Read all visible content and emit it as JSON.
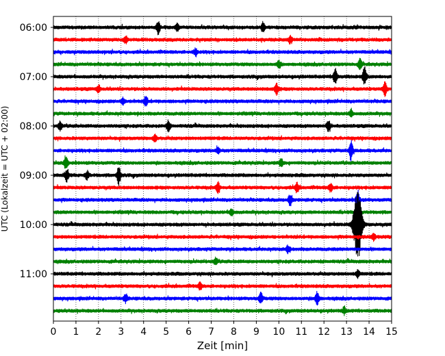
{
  "chart_data": {
    "type": "line",
    "title": "",
    "xlabel": "Zeit  [min]",
    "ylabel": "UTC (Lokalzeit = UTC + 02:00)",
    "xlim": [
      0,
      15
    ],
    "x_ticks": [
      "0",
      "1",
      "2",
      "3",
      "4",
      "5",
      "6",
      "7",
      "8",
      "9",
      "10",
      "11",
      "12",
      "13",
      "14",
      "15"
    ],
    "y_ticks": [
      "06:00",
      "07:00",
      "08:00",
      "09:00",
      "10:00",
      "11:00"
    ],
    "grid": "vertical dotted",
    "colors": [
      "#000000",
      "#ff0000",
      "#0000ff",
      "#008000"
    ],
    "series": [
      {
        "start": "06:00",
        "color": "#000000",
        "events": [
          {
            "t": 4.65,
            "amp": 0.55
          },
          {
            "t": 9.3,
            "amp": 0.4
          },
          {
            "t": 5.5,
            "amp": 0.3
          }
        ]
      },
      {
        "start": "06:15",
        "color": "#ff0000",
        "events": [
          {
            "t": 3.2,
            "amp": 0.3
          },
          {
            "t": 10.5,
            "amp": 0.3
          }
        ]
      },
      {
        "start": "06:30",
        "color": "#0000ff",
        "events": [
          {
            "t": 6.3,
            "amp": 0.3
          }
        ]
      },
      {
        "start": "06:45",
        "color": "#008000",
        "events": [
          {
            "t": 13.6,
            "amp": 0.45
          },
          {
            "t": 10.0,
            "amp": 0.3
          }
        ]
      },
      {
        "start": "07:00",
        "color": "#000000",
        "events": [
          {
            "t": 12.5,
            "amp": 0.7
          },
          {
            "t": 13.8,
            "amp": 0.8
          }
        ]
      },
      {
        "start": "07:15",
        "color": "#ff0000",
        "events": [
          {
            "t": 14.7,
            "amp": 0.6
          },
          {
            "t": 9.9,
            "amp": 0.5
          },
          {
            "t": 2.0,
            "amp": 0.3
          }
        ]
      },
      {
        "start": "07:30",
        "color": "#0000ff",
        "events": [
          {
            "t": 4.1,
            "amp": 0.4
          },
          {
            "t": 3.1,
            "amp": 0.3
          }
        ]
      },
      {
        "start": "07:45",
        "color": "#008000",
        "events": [
          {
            "t": 13.2,
            "amp": 0.3
          }
        ]
      },
      {
        "start": "08:00",
        "color": "#000000",
        "events": [
          {
            "t": 0.3,
            "amp": 0.4
          },
          {
            "t": 5.1,
            "amp": 0.45
          },
          {
            "t": 12.2,
            "amp": 0.5
          }
        ]
      },
      {
        "start": "08:15",
        "color": "#ff0000",
        "events": [
          {
            "t": 4.5,
            "amp": 0.3
          }
        ]
      },
      {
        "start": "08:30",
        "color": "#0000ff",
        "events": [
          {
            "t": 13.2,
            "amp": 0.9
          },
          {
            "t": 7.3,
            "amp": 0.3
          }
        ]
      },
      {
        "start": "08:45",
        "color": "#008000",
        "events": [
          {
            "t": 0.55,
            "amp": 0.6
          },
          {
            "t": 10.1,
            "amp": 0.35
          }
        ]
      },
      {
        "start": "09:00",
        "color": "#000000",
        "events": [
          {
            "t": 0.6,
            "amp": 0.55
          },
          {
            "t": 2.9,
            "amp": 0.8
          },
          {
            "t": 1.5,
            "amp": 0.35
          }
        ]
      },
      {
        "start": "09:15",
        "color": "#ff0000",
        "events": [
          {
            "t": 7.3,
            "amp": 0.45
          },
          {
            "t": 10.8,
            "amp": 0.4
          },
          {
            "t": 12.3,
            "amp": 0.4
          }
        ]
      },
      {
        "start": "09:30",
        "color": "#0000ff",
        "events": [
          {
            "t": 10.5,
            "amp": 0.5
          },
          {
            "t": 13.5,
            "amp": 0.8
          }
        ]
      },
      {
        "start": "09:45",
        "color": "#008000",
        "events": [
          {
            "t": 7.9,
            "amp": 0.3
          }
        ]
      },
      {
        "start": "10:00",
        "color": "#000000",
        "events": [
          {
            "t": 13.5,
            "amp": 3.2
          }
        ]
      },
      {
        "start": "10:15",
        "color": "#ff0000",
        "events": [
          {
            "t": 14.2,
            "amp": 0.3
          }
        ]
      },
      {
        "start": "10:30",
        "color": "#0000ff",
        "events": [
          {
            "t": 10.4,
            "amp": 0.3
          }
        ]
      },
      {
        "start": "10:45",
        "color": "#008000",
        "events": [
          {
            "t": 7.2,
            "amp": 0.3
          }
        ]
      },
      {
        "start": "11:00",
        "color": "#000000",
        "events": [
          {
            "t": 13.5,
            "amp": 0.3
          }
        ]
      },
      {
        "start": "11:15",
        "color": "#ff0000",
        "events": [
          {
            "t": 6.5,
            "amp": 0.3
          }
        ]
      },
      {
        "start": "11:30",
        "color": "#0000ff",
        "events": [
          {
            "t": 3.2,
            "amp": 0.35
          },
          {
            "t": 9.2,
            "amp": 0.5
          },
          {
            "t": 11.7,
            "amp": 0.6
          }
        ]
      },
      {
        "start": "11:45",
        "color": "#008000",
        "events": [
          {
            "t": 12.9,
            "amp": 0.3
          }
        ]
      }
    ]
  }
}
